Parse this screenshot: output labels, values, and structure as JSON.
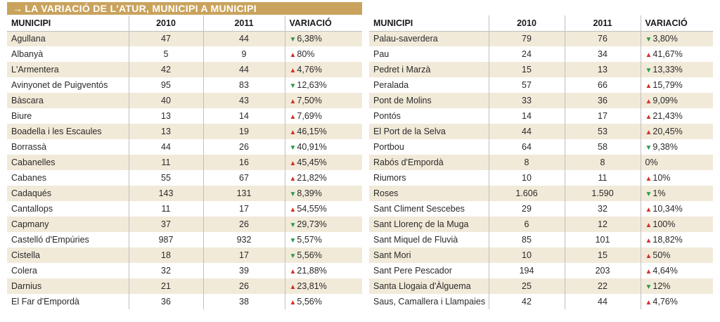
{
  "title": {
    "arrow": "→",
    "text": "LA VARIACIÓ DE L'ATUR, MUNICIPI A MUNICIPI"
  },
  "headers": {
    "municipi": "MUNICIPI",
    "y2010": "2010",
    "y2011": "2011",
    "variacio": "VARIACIÓ"
  },
  "arrows": {
    "up": "▲",
    "down": "▼"
  },
  "colors": {
    "up": "#d3322c",
    "down": "#2a9a4a",
    "title_bg": "#c9a35d",
    "row_shade": "#f2ead9"
  },
  "left_rows": [
    {
      "municipi": "Agullana",
      "y2010": "47",
      "y2011": "44",
      "dir": "down",
      "variacio": "6,38%"
    },
    {
      "municipi": "Albanyà",
      "y2010": "5",
      "y2011": "9",
      "dir": "up",
      "variacio": "80%"
    },
    {
      "municipi": "L'Armentera",
      "y2010": "42",
      "y2011": "44",
      "dir": "up",
      "variacio": "4,76%"
    },
    {
      "municipi": "Avinyonet de Puigventós",
      "y2010": "95",
      "y2011": "83",
      "dir": "down",
      "variacio": "12,63%"
    },
    {
      "municipi": "Bàscara",
      "y2010": "40",
      "y2011": "43",
      "dir": "up",
      "variacio": "7,50%"
    },
    {
      "municipi": "Biure",
      "y2010": "13",
      "y2011": "14",
      "dir": "up",
      "variacio": "7,69%"
    },
    {
      "municipi": "Boadella i les Escaules",
      "y2010": "13",
      "y2011": "19",
      "dir": "up",
      "variacio": "46,15%"
    },
    {
      "municipi": "Borrassà",
      "y2010": "44",
      "y2011": "26",
      "dir": "down",
      "variacio": "40,91%"
    },
    {
      "municipi": "Cabanelles",
      "y2010": "11",
      "y2011": "16",
      "dir": "up",
      "variacio": "45,45%"
    },
    {
      "municipi": "Cabanes",
      "y2010": "55",
      "y2011": "67",
      "dir": "up",
      "variacio": "21,82%"
    },
    {
      "municipi": "Cadaqués",
      "y2010": "143",
      "y2011": "131",
      "dir": "down",
      "variacio": "8,39%"
    },
    {
      "municipi": "Cantallops",
      "y2010": "11",
      "y2011": "17",
      "dir": "up",
      "variacio": "54,55%"
    },
    {
      "municipi": "Capmany",
      "y2010": "37",
      "y2011": "26",
      "dir": "down",
      "variacio": "29,73%"
    },
    {
      "municipi": "Castelló d'Empúries",
      "y2010": "987",
      "y2011": "932",
      "dir": "down",
      "variacio": "5,57%"
    },
    {
      "municipi": "Cistella",
      "y2010": "18",
      "y2011": "17",
      "dir": "down",
      "variacio": "5,56%"
    },
    {
      "municipi": "Colera",
      "y2010": "32",
      "y2011": "39",
      "dir": "up",
      "variacio": "21,88%"
    },
    {
      "municipi": "Darnius",
      "y2010": "21",
      "y2011": "26",
      "dir": "up",
      "variacio": "23,81%"
    },
    {
      "municipi": "El Far d'Empordà",
      "y2010": "36",
      "y2011": "38",
      "dir": "up",
      "variacio": "5,56%"
    }
  ],
  "right_rows": [
    {
      "municipi": "Palau-saverdera",
      "y2010": "79",
      "y2011": "76",
      "dir": "down",
      "variacio": "3,80%"
    },
    {
      "municipi": "Pau",
      "y2010": "24",
      "y2011": "34",
      "dir": "up",
      "variacio": "41,67%"
    },
    {
      "municipi": "Pedret i Marzà",
      "y2010": "15",
      "y2011": "13",
      "dir": "down",
      "variacio": "13,33%"
    },
    {
      "municipi": "Peralada",
      "y2010": "57",
      "y2011": "66",
      "dir": "up",
      "variacio": "15,79%"
    },
    {
      "municipi": "Pont de Molins",
      "y2010": "33",
      "y2011": "36",
      "dir": "up",
      "variacio": "9,09%"
    },
    {
      "municipi": "Pontós",
      "y2010": "14",
      "y2011": "17",
      "dir": "up",
      "variacio": "21,43%"
    },
    {
      "municipi": "El Port de la Selva",
      "y2010": "44",
      "y2011": "53",
      "dir": "up",
      "variacio": "20,45%"
    },
    {
      "municipi": "Portbou",
      "y2010": "64",
      "y2011": "58",
      "dir": "down",
      "variacio": "9,38%"
    },
    {
      "municipi": "Rabós d'Empordà",
      "y2010": "8",
      "y2011": "8",
      "dir": "none",
      "variacio": "0%"
    },
    {
      "municipi": "Riumors",
      "y2010": "10",
      "y2011": "11",
      "dir": "up",
      "variacio": "10%"
    },
    {
      "municipi": "Roses",
      "y2010": "1.606",
      "y2011": "1.590",
      "dir": "down",
      "variacio": "1%"
    },
    {
      "municipi": "Sant Climent Sescebes",
      "y2010": "29",
      "y2011": "32",
      "dir": "up",
      "variacio": "10,34%"
    },
    {
      "municipi": "Sant Llorenç de la Muga",
      "y2010": "6",
      "y2011": "12",
      "dir": "up",
      "variacio": "100%"
    },
    {
      "municipi": "Sant Miquel de Fluvià",
      "y2010": "85",
      "y2011": "101",
      "dir": "up",
      "variacio": "18,82%"
    },
    {
      "municipi": "Sant Mori",
      "y2010": "10",
      "y2011": "15",
      "dir": "up",
      "variacio": "50%"
    },
    {
      "municipi": "Sant Pere Pescador",
      "y2010": "194",
      "y2011": "203",
      "dir": "up",
      "variacio": "4,64%"
    },
    {
      "municipi": "Santa Llogaia d'Àlguema",
      "y2010": "25",
      "y2011": "22",
      "dir": "down",
      "variacio": "12%"
    },
    {
      "municipi": "Saus, Camallera i Llampaies",
      "y2010": "42",
      "y2011": "44",
      "dir": "up",
      "variacio": "4,76%"
    }
  ]
}
